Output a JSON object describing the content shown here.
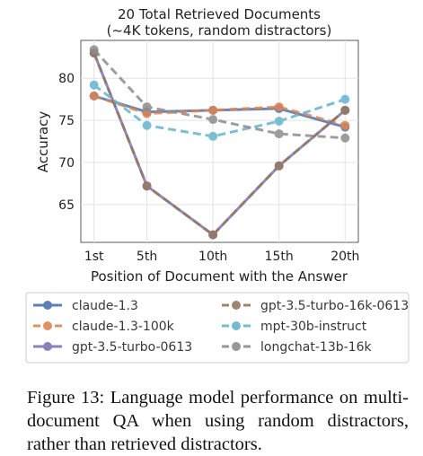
{
  "chart_data": {
    "type": "line",
    "title": [
      "20 Total Retrieved Documents",
      "(~4K tokens, random distractors)"
    ],
    "xlabel": "Position of Document with the Answer",
    "ylabel": "Accuracy",
    "categories": [
      "1st",
      "5th",
      "10th",
      "15th",
      "20th"
    ],
    "x": [
      1,
      5,
      10,
      15,
      20
    ],
    "xlim": [
      0,
      21
    ],
    "ylim": [
      60.5,
      84.5
    ],
    "yticks": [
      65,
      70,
      75,
      80
    ],
    "grid": true,
    "legend_position": "bottom",
    "series": [
      {
        "name": "claude-1.3",
        "values": [
          77.9,
          76.0,
          76.2,
          76.4,
          74.2
        ],
        "color": "#4c72b0",
        "style": "solid"
      },
      {
        "name": "claude-1.3-100k",
        "values": [
          77.9,
          75.8,
          76.2,
          76.6,
          74.4
        ],
        "color": "#dd8452",
        "style": "dashed"
      },
      {
        "name": "gpt-3.5-turbo-0613",
        "values": [
          83.0,
          67.2,
          61.4,
          69.6,
          76.2
        ],
        "color": "#8172b3",
        "style": "solid"
      },
      {
        "name": "gpt-3.5-turbo-16k-0613",
        "values": [
          83.0,
          67.2,
          61.4,
          69.6,
          76.2
        ],
        "color": "#937860",
        "style": "dashed"
      },
      {
        "name": "mpt-30b-instruct",
        "values": [
          79.2,
          74.4,
          73.1,
          74.9,
          77.5
        ],
        "color": "#64b5cd",
        "style": "dashed"
      },
      {
        "name": "longchat-13b-16k",
        "values": [
          83.4,
          76.6,
          75.1,
          73.4,
          72.9
        ],
        "color": "#8c8c8c",
        "style": "dashed"
      }
    ]
  },
  "legend_order": [
    0,
    3,
    1,
    4,
    2,
    5
  ],
  "caption": "Figure 13: Language model performance on multi-document QA when using random distractors, rather than retrieved distractors."
}
